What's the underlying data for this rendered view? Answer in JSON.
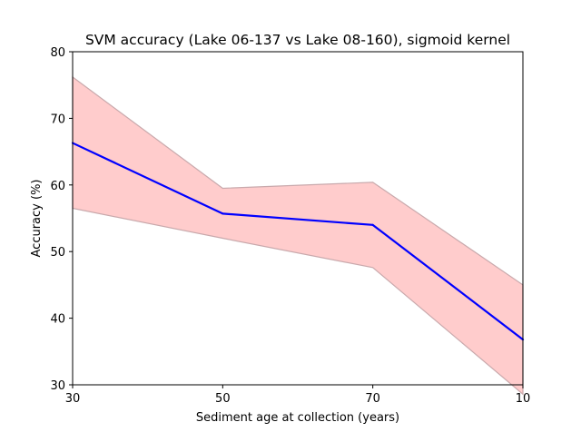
{
  "chart_data": {
    "type": "line",
    "title": "SVM accuracy (Lake 06-137 vs Lake 08-160), sigmoid kernel",
    "xlabel": "Sediment age at collection (years)",
    "ylabel": "Accuracy (%)",
    "categories": [
      "30",
      "50",
      "70",
      "10"
    ],
    "ylim": [
      30,
      80
    ],
    "yticks": [
      30,
      40,
      50,
      60,
      70,
      80
    ],
    "grid": false,
    "legend": "none",
    "series": [
      {
        "values": [
          66.3,
          55.7,
          54.0,
          36.8
        ],
        "lower": [
          56.5,
          52.0,
          47.6,
          28.6
        ],
        "upper": [
          76.2,
          59.5,
          60.4,
          45.0
        ],
        "line_color": "#0000ff",
        "band_fill": "#ffcccc",
        "band_edge": "#c9a9ac"
      }
    ]
  }
}
